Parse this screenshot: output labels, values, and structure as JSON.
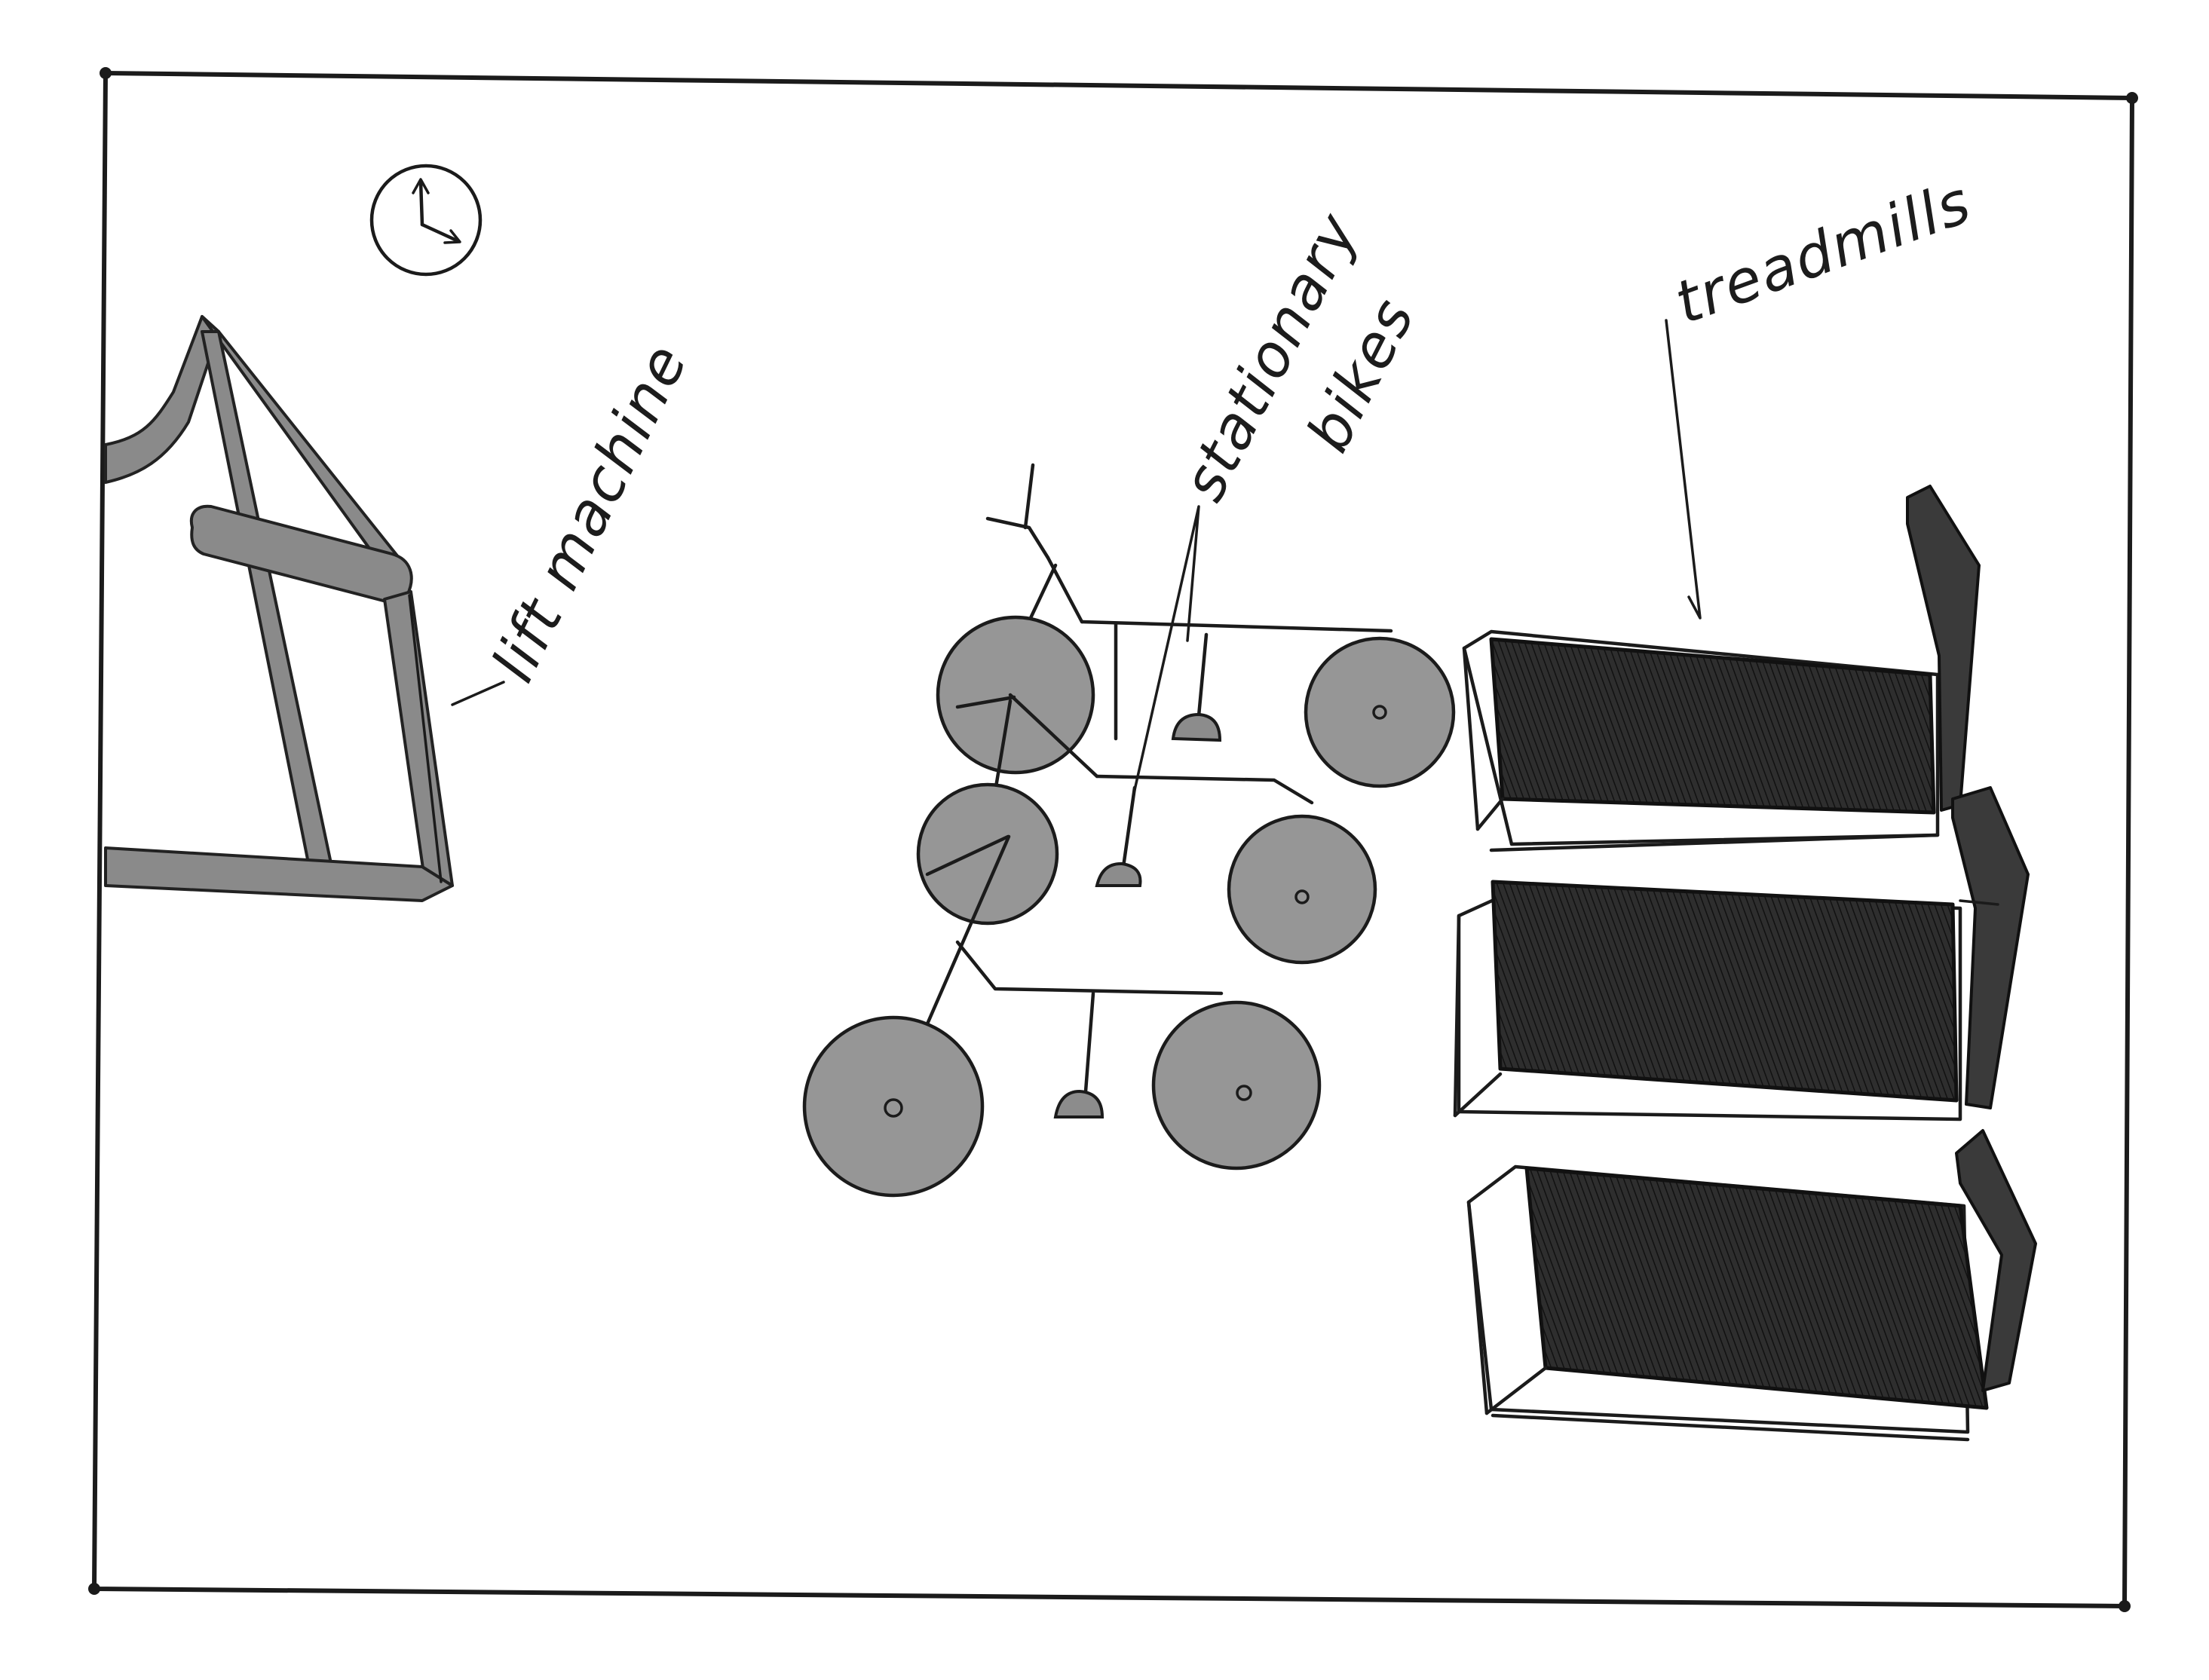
{
  "labels": {
    "lift_machine": "lift machine",
    "stationary_bikes_line1": "stationary",
    "stationary_bikes_line2": "bikes",
    "treadmills": "treadmills"
  },
  "icons": {
    "clock": "clock-icon"
  },
  "colors": {
    "paper": "#ffffff",
    "pencil": "#1b1b1b",
    "graphite_light": "#969696",
    "graphite_dark": "#2a2a2a"
  }
}
